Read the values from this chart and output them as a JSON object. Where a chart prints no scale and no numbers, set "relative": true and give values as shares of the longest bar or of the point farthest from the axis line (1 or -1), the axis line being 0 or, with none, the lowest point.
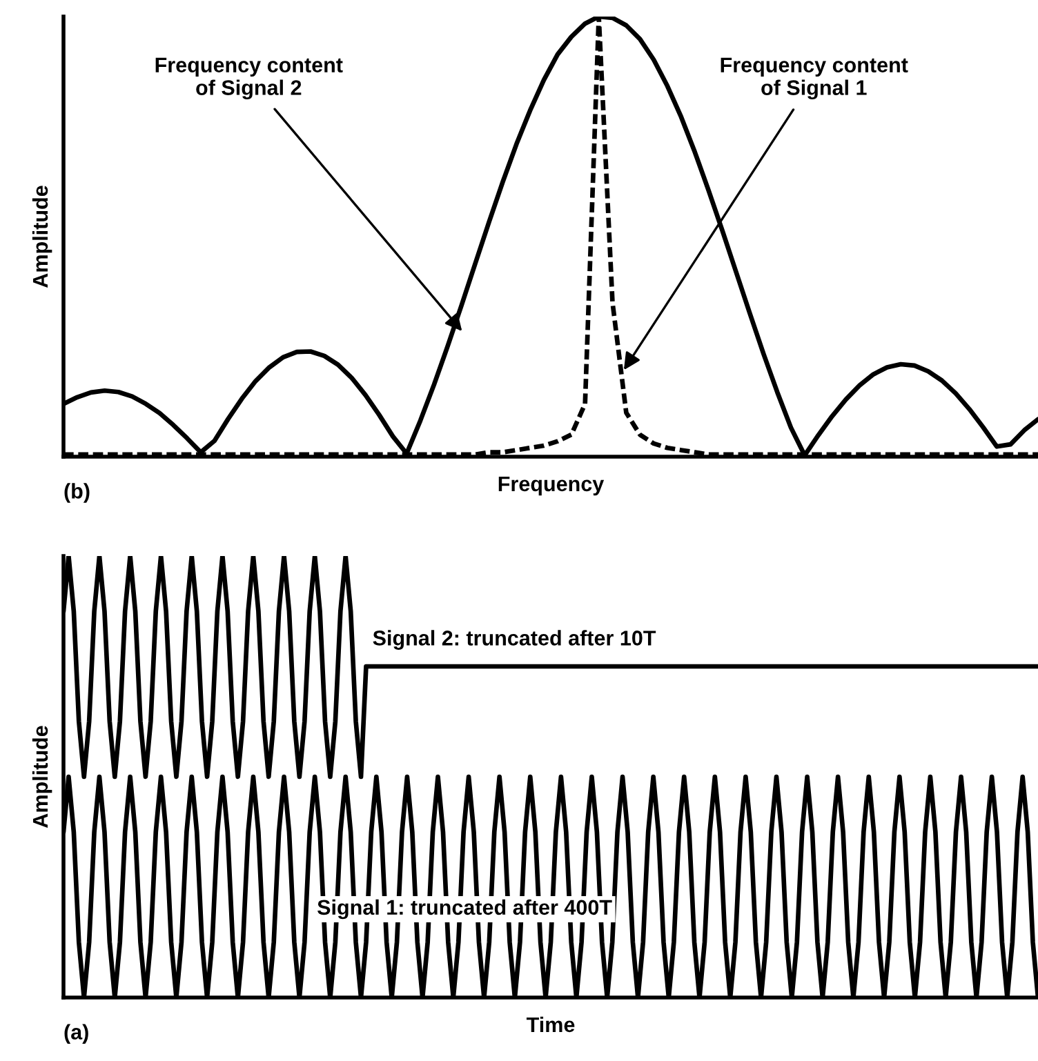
{
  "chart_data": [
    {
      "type": "line",
      "relative": true,
      "xlabel": "Frequency",
      "ylabel": "Amplitude",
      "categories": [
        null,
        null,
        null,
        null,
        null,
        null,
        null,
        null,
        null,
        null,
        null,
        null,
        null,
        null,
        null,
        null,
        null,
        null,
        null,
        null,
        null,
        null,
        null,
        null,
        null,
        null,
        null,
        null,
        null,
        null,
        null,
        null,
        null,
        null,
        null,
        null,
        null,
        null,
        null,
        null,
        null,
        null,
        null,
        null,
        null,
        null,
        null,
        null,
        null,
        null,
        null,
        null,
        null,
        null,
        null,
        null,
        null,
        null,
        null,
        null,
        null,
        null,
        null,
        null,
        null,
        null,
        null,
        null,
        null,
        null,
        null,
        null
      ],
      "series": [
        {
          "color": "#000000",
          "line_style": "solid",
          "values": [
            0.12,
            0.135,
            0.146,
            0.15,
            0.147,
            0.137,
            0.12,
            0.099,
            0.072,
            0.042,
            0.01,
            0.036,
            0.086,
            0.132,
            0.172,
            0.203,
            0.226,
            0.238,
            0.239,
            0.229,
            0.209,
            0.179,
            0.14,
            0.095,
            0.046,
            0.007,
            0.082,
            0.164,
            0.252,
            0.344,
            0.439,
            0.533,
            0.624,
            0.71,
            0.787,
            0.856,
            0.914,
            0.954,
            0.984,
            1,
            0.997,
            0.98,
            0.949,
            0.902,
            0.842,
            0.772,
            0.692,
            0.605,
            0.514,
            0.42,
            0.326,
            0.234,
            0.147,
            0.066,
            0.003,
            0.049,
            0.092,
            0.13,
            0.162,
            0.187,
            0.203,
            0.21,
            0.207,
            0.194,
            0.173,
            0.144,
            0.108,
            0.067,
            0.023,
            0.028,
            0.06,
            0.085
          ]
        },
        {
          "color": "#000000",
          "line_style": "dashed",
          "values": [
            0.005,
            0.005,
            0.005,
            0.005,
            0.005,
            0.005,
            0.005,
            0.005,
            0.005,
            0.005,
            0.005,
            0.005,
            0.005,
            0.005,
            0.005,
            0.005,
            0.005,
            0.005,
            0.005,
            0.005,
            0.005,
            0.005,
            0.005,
            0.005,
            0.005,
            0.005,
            0.005,
            0.005,
            0.005,
            0.005,
            0.005,
            0.01,
            0.01,
            0.015,
            0.02,
            0.025,
            0.035,
            0.05,
            0.12,
            1,
            0.35,
            0.1,
            0.05,
            0.03,
            0.02,
            0.015,
            0.01,
            0.005,
            0.005,
            0.005,
            0.005,
            0.005,
            0.005,
            0.005,
            0.005,
            0.005,
            0.005,
            0.005,
            0.005,
            0.005,
            0.005,
            0.005,
            0.005,
            0.005,
            0.005,
            0.005,
            0.005,
            0.005,
            0.005,
            0.005,
            0.005,
            0.005
          ]
        }
      ],
      "annotations": [
        "Frequency content\nof Signal 2",
        "Frequency content\nof Signal 1",
        "(b)"
      ]
    },
    {
      "type": "line",
      "relative": true,
      "xlabel": "Time",
      "ylabel": "Amplitude",
      "categories": [
        null,
        null,
        null,
        null,
        null,
        null,
        null,
        null,
        null,
        null,
        null,
        null,
        null,
        null,
        null,
        null,
        null,
        null,
        null,
        null,
        null,
        null,
        null,
        null,
        null,
        null,
        null,
        null,
        null,
        null,
        null,
        null,
        null,
        null,
        null,
        null,
        null,
        null,
        null,
        null,
        null,
        null,
        null,
        null,
        null,
        null,
        null,
        null,
        null,
        null,
        null,
        null,
        null,
        null,
        null,
        null,
        null,
        null,
        null,
        null,
        null,
        null,
        null,
        null,
        null,
        null,
        null,
        null,
        null,
        null,
        null,
        null,
        null,
        null,
        null,
        null,
        null,
        null,
        null,
        null,
        null,
        null,
        null,
        null,
        null,
        null,
        null,
        null,
        null,
        null,
        null,
        null,
        null,
        null,
        null,
        null,
        null,
        null,
        null,
        null,
        null,
        null,
        null,
        null,
        null,
        null,
        null,
        null,
        null,
        null,
        null,
        null,
        null,
        null,
        null,
        null,
        null,
        null,
        null,
        null,
        null,
        null,
        null,
        null,
        null,
        null,
        null,
        null,
        null,
        null,
        null,
        null,
        null,
        null,
        null,
        null,
        null,
        null,
        null,
        null,
        null,
        null,
        null,
        null,
        null,
        null,
        null,
        null,
        null,
        null,
        null,
        null,
        null,
        null,
        null,
        null,
        null,
        null,
        null,
        null,
        null,
        null,
        null,
        null,
        null,
        null,
        null,
        null,
        null,
        null,
        null,
        null,
        null,
        null,
        null,
        null,
        null,
        null,
        null,
        null,
        null,
        null,
        null,
        null,
        null,
        null,
        null,
        null,
        null,
        null,
        null
      ],
      "series": [
        {
          "color": "#000000",
          "line_style": "solid",
          "values": [
            0.875,
            1,
            0.875,
            0.625,
            0.5,
            0.625,
            0.875,
            1,
            0.875,
            0.625,
            0.5,
            0.625,
            0.875,
            1,
            0.875,
            0.625,
            0.5,
            0.625,
            0.875,
            1,
            0.875,
            0.625,
            0.5,
            0.625,
            0.875,
            1,
            0.875,
            0.625,
            0.5,
            0.625,
            0.875,
            1,
            0.875,
            0.625,
            0.5,
            0.625,
            0.875,
            1,
            0.875,
            0.625,
            0.5,
            0.625,
            0.875,
            1,
            0.875,
            0.625,
            0.5,
            0.625,
            0.875,
            1,
            0.875,
            0.625,
            0.5,
            0.625,
            0.875,
            1,
            0.875,
            0.625,
            0.5,
            0.75,
            0.75,
            0.75,
            0.75,
            0.75,
            0.75,
            0.75,
            0.75,
            0.75,
            0.75,
            0.75,
            0.75,
            0.75,
            0.75,
            0.75,
            0.75,
            0.75,
            0.75,
            0.75,
            0.75,
            0.75,
            0.75,
            0.75,
            0.75,
            0.75,
            0.75,
            0.75,
            0.75,
            0.75,
            0.75,
            0.75,
            0.75,
            0.75,
            0.75,
            0.75,
            0.75,
            0.75,
            0.75,
            0.75,
            0.75,
            0.75,
            0.75,
            0.75,
            0.75,
            0.75,
            0.75,
            0.75,
            0.75,
            0.75,
            0.75,
            0.75,
            0.75,
            0.75,
            0.75,
            0.75,
            0.75,
            0.75,
            0.75,
            0.75,
            0.75,
            0.75,
            0.75,
            0.75,
            0.75,
            0.75,
            0.75,
            0.75,
            0.75,
            0.75,
            0.75,
            0.75,
            0.75,
            0.75,
            0.75,
            0.75,
            0.75,
            0.75,
            0.75,
            0.75,
            0.75,
            0.75,
            0.75,
            0.75,
            0.75,
            0.75,
            0.75,
            0.75,
            0.75,
            0.75,
            0.75,
            0.75,
            0.75,
            0.75,
            0.75,
            0.75,
            0.75,
            0.75,
            0.75,
            0.75,
            0.75,
            0.75,
            0.75,
            0.75,
            0.75,
            0.75,
            0.75,
            0.75,
            0.75,
            0.75,
            0.75,
            0.75,
            0.75,
            0.75,
            0.75,
            0.75,
            0.75,
            0.75,
            0.75,
            0.75,
            0.75,
            0.75,
            0.75,
            0.75,
            0.75,
            0.75,
            0.75,
            0.75,
            0.75,
            0.75,
            0.75,
            0.75,
            0.75
          ]
        },
        {
          "color": "#000000",
          "line_style": "solid",
          "values": [
            0.375,
            0.5,
            0.375,
            0.125,
            0,
            0.125,
            0.375,
            0.5,
            0.375,
            0.125,
            0,
            0.125,
            0.375,
            0.5,
            0.375,
            0.125,
            0,
            0.125,
            0.375,
            0.5,
            0.375,
            0.125,
            0,
            0.125,
            0.375,
            0.5,
            0.375,
            0.125,
            0,
            0.125,
            0.375,
            0.5,
            0.375,
            0.125,
            0,
            0.125,
            0.375,
            0.5,
            0.375,
            0.125,
            0,
            0.125,
            0.375,
            0.5,
            0.375,
            0.125,
            0,
            0.125,
            0.375,
            0.5,
            0.375,
            0.125,
            0,
            0.125,
            0.375,
            0.5,
            0.375,
            0.125,
            0,
            0.125,
            0.375,
            0.5,
            0.375,
            0.125,
            0,
            0.125,
            0.375,
            0.5,
            0.375,
            0.125,
            0,
            0.125,
            0.375,
            0.5,
            0.375,
            0.125,
            0,
            0.125,
            0.375,
            0.5,
            0.375,
            0.125,
            0,
            0.125,
            0.375,
            0.5,
            0.375,
            0.125,
            0,
            0.125,
            0.375,
            0.5,
            0.375,
            0.125,
            0,
            0.125,
            0.375,
            0.5,
            0.375,
            0.125,
            0,
            0.125,
            0.375,
            0.5,
            0.375,
            0.125,
            0,
            0.125,
            0.375,
            0.5,
            0.375,
            0.125,
            0,
            0.125,
            0.375,
            0.5,
            0.375,
            0.125,
            0,
            0.125,
            0.375,
            0.5,
            0.375,
            0.125,
            0,
            0.125,
            0.375,
            0.5,
            0.375,
            0.125,
            0,
            0.125,
            0.375,
            0.5,
            0.375,
            0.125,
            0,
            0.125,
            0.375,
            0.5,
            0.375,
            0.125,
            0,
            0.125,
            0.375,
            0.5,
            0.375,
            0.125,
            0,
            0.125,
            0.375,
            0.5,
            0.375,
            0.125,
            0,
            0.125,
            0.375,
            0.5,
            0.375,
            0.125,
            0,
            0.125,
            0.375,
            0.5,
            0.375,
            0.125,
            0,
            0.125,
            0.375,
            0.5,
            0.375,
            0.125,
            0,
            0.125,
            0.375,
            0.5,
            0.375,
            0.125,
            0,
            0.125,
            0.375,
            0.5,
            0.375,
            0.125,
            0,
            0.125,
            0.375,
            0.5,
            0.375,
            0.125,
            0
          ]
        }
      ],
      "annotations": [
        "Signal 2: truncated after 10T",
        "Signal 1: truncated after 400T",
        "(a)"
      ]
    }
  ]
}
